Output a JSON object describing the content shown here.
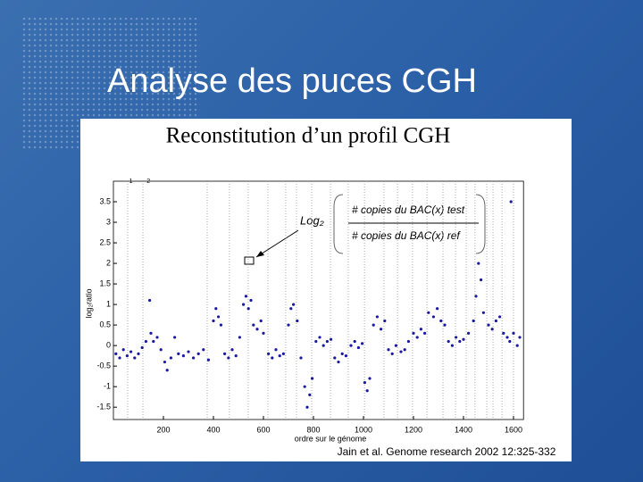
{
  "slide_title": "Analyse des puces CGH",
  "chart_data": {
    "type": "scatter",
    "title": "Reconstitution d’un profil CGH",
    "xlabel": "ordre sur le génome",
    "ylabel": "log₂ratio",
    "citation": "Jain et al. Genome research 2002 12:325-332",
    "annotation": {
      "label": "Log₂",
      "numerator": "# copies du BAC(x) test",
      "denominator": "# copies du BAC(x) ref"
    },
    "chromosome_labels": [
      {
        "label": "1",
        "x": 70
      },
      {
        "label": "2",
        "x": 140
      }
    ],
    "chromosome_boundaries": [
      57,
      118,
      375,
      464,
      539,
      618,
      689,
      732,
      793,
      868,
      939,
      1004,
      1082,
      1136,
      1196,
      1254,
      1318,
      1368,
      1411,
      1446,
      1493,
      1518,
      1554,
      1600
    ],
    "color": "#1a1aa0",
    "xlim": [
      0,
      1640
    ],
    "ylim": [
      -1.8,
      4
    ],
    "xticks": [
      200,
      400,
      600,
      800,
      1000,
      1200,
      1400,
      1600
    ],
    "yticks": [
      -1.5,
      -1,
      -0.5,
      0,
      0.5,
      1,
      1.5,
      2,
      2.5,
      3,
      3.5
    ],
    "x": [
      10,
      25,
      40,
      55,
      70,
      85,
      100,
      115,
      130,
      145,
      150,
      160,
      175,
      190,
      205,
      215,
      230,
      245,
      260,
      280,
      300,
      320,
      340,
      360,
      380,
      400,
      410,
      420,
      430,
      445,
      460,
      475,
      490,
      505,
      520,
      530,
      540,
      550,
      560,
      575,
      590,
      600,
      620,
      635,
      650,
      665,
      680,
      700,
      710,
      720,
      735,
      750,
      765,
      775,
      785,
      795,
      810,
      825,
      840,
      855,
      870,
      885,
      900,
      915,
      930,
      950,
      965,
      980,
      995,
      1005,
      1015,
      1025,
      1040,
      1055,
      1070,
      1085,
      1100,
      1115,
      1130,
      1150,
      1165,
      1180,
      1200,
      1215,
      1230,
      1245,
      1260,
      1280,
      1295,
      1310,
      1325,
      1340,
      1355,
      1370,
      1385,
      1400,
      1420,
      1440,
      1450,
      1460,
      1470,
      1480,
      1500,
      1515,
      1530,
      1545,
      1560,
      1575,
      1585,
      1590,
      1600,
      1615,
      1625
    ],
    "y": [
      -0.2,
      -0.3,
      -0.1,
      -0.25,
      -0.15,
      -0.3,
      -0.2,
      -0.05,
      0.1,
      1.1,
      0.3,
      0.1,
      0.2,
      -0.1,
      -0.4,
      -0.6,
      -0.3,
      0.2,
      -0.2,
      -0.25,
      -0.15,
      -0.3,
      -0.2,
      -0.1,
      -0.35,
      0.6,
      0.9,
      0.7,
      0.5,
      -0.2,
      -0.3,
      -0.1,
      -0.25,
      0.2,
      1.0,
      1.2,
      0.9,
      1.1,
      0.5,
      0.4,
      0.6,
      0.3,
      -0.2,
      -0.3,
      -0.1,
      -0.25,
      -0.2,
      0.5,
      0.9,
      1.0,
      0.6,
      -0.3,
      -1.0,
      -1.5,
      -1.2,
      -0.8,
      0.1,
      0.2,
      0.0,
      0.1,
      0.15,
      -0.3,
      -0.4,
      -0.2,
      -0.25,
      0.0,
      0.1,
      -0.05,
      0.05,
      -0.9,
      -1.1,
      -0.8,
      0.5,
      0.7,
      0.4,
      0.6,
      -0.1,
      -0.2,
      0.0,
      -0.15,
      -0.1,
      0.1,
      0.3,
      0.2,
      0.4,
      0.3,
      0.8,
      0.7,
      0.9,
      0.6,
      0.5,
      0.1,
      0.0,
      0.2,
      0.1,
      0.15,
      0.3,
      0.6,
      1.2,
      2.0,
      1.6,
      0.8,
      0.5,
      0.4,
      0.6,
      0.7,
      0.3,
      0.2,
      0.1,
      3.5,
      0.3,
      0.0,
      0.2
    ],
    "grid": false
  }
}
